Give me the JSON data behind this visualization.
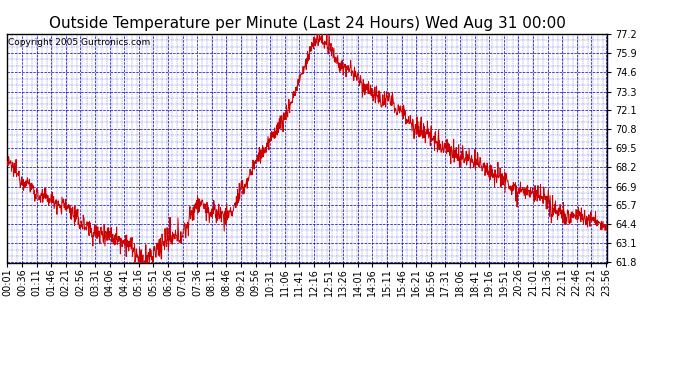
{
  "title": "Outside Temperature per Minute (Last 24 Hours) Wed Aug 31 00:00",
  "copyright": "Copyright 2005 Gurtronics.com",
  "background_color": "#ffffff",
  "plot_bg_color": "#ffffff",
  "line_color": "#cc0000",
  "grid_color": "#0000bb",
  "ylim": [
    61.8,
    77.2
  ],
  "yticks": [
    61.8,
    63.1,
    64.4,
    65.7,
    66.9,
    68.2,
    69.5,
    70.8,
    72.1,
    73.3,
    74.6,
    75.9,
    77.2
  ],
  "xtick_labels": [
    "00:01",
    "00:36",
    "01:11",
    "01:46",
    "02:21",
    "02:56",
    "03:31",
    "04:06",
    "04:41",
    "05:16",
    "05:51",
    "06:26",
    "07:01",
    "07:36",
    "08:11",
    "08:46",
    "09:21",
    "09:56",
    "10:31",
    "11:06",
    "11:41",
    "12:16",
    "12:51",
    "13:26",
    "14:01",
    "14:36",
    "15:11",
    "15:46",
    "16:21",
    "16:56",
    "17:31",
    "18:06",
    "18:41",
    "19:16",
    "19:51",
    "20:26",
    "21:01",
    "21:36",
    "22:11",
    "22:46",
    "23:21",
    "23:56"
  ],
  "title_fontsize": 11,
  "axis_fontsize": 7,
  "copyright_fontsize": 6.5,
  "profile_points_hours": [
    0,
    0.5,
    1.0,
    1.5,
    2.0,
    2.5,
    3.0,
    3.5,
    4.0,
    4.5,
    5.0,
    5.44,
    5.6,
    6.0,
    6.5,
    7.0,
    7.6,
    7.9,
    8.0,
    8.5,
    9.0,
    9.5,
    10.0,
    10.5,
    11.0,
    11.5,
    11.7,
    12.0,
    12.27,
    12.5,
    12.85,
    13.0,
    13.5,
    14.0,
    14.5,
    15.0,
    15.5,
    16.0,
    16.5,
    17.0,
    17.5,
    18.0,
    18.5,
    19.0,
    19.5,
    20.0,
    20.5,
    21.0,
    21.5,
    22.0,
    22.5,
    23.0,
    23.5,
    24.0
  ],
  "profile_points_temp": [
    68.5,
    67.5,
    66.8,
    66.3,
    65.8,
    65.2,
    64.5,
    64.0,
    63.6,
    63.3,
    63.0,
    61.8,
    62.0,
    62.5,
    63.3,
    63.8,
    65.7,
    65.5,
    65.2,
    65.0,
    65.5,
    67.0,
    68.5,
    70.0,
    71.5,
    73.0,
    74.0,
    75.3,
    76.5,
    77.0,
    76.5,
    75.9,
    74.8,
    74.2,
    73.5,
    72.8,
    72.3,
    71.5,
    70.9,
    70.2,
    69.5,
    69.1,
    68.8,
    68.3,
    67.8,
    67.3,
    66.8,
    66.3,
    65.8,
    65.4,
    65.0,
    64.8,
    64.5,
    64.4
  ]
}
